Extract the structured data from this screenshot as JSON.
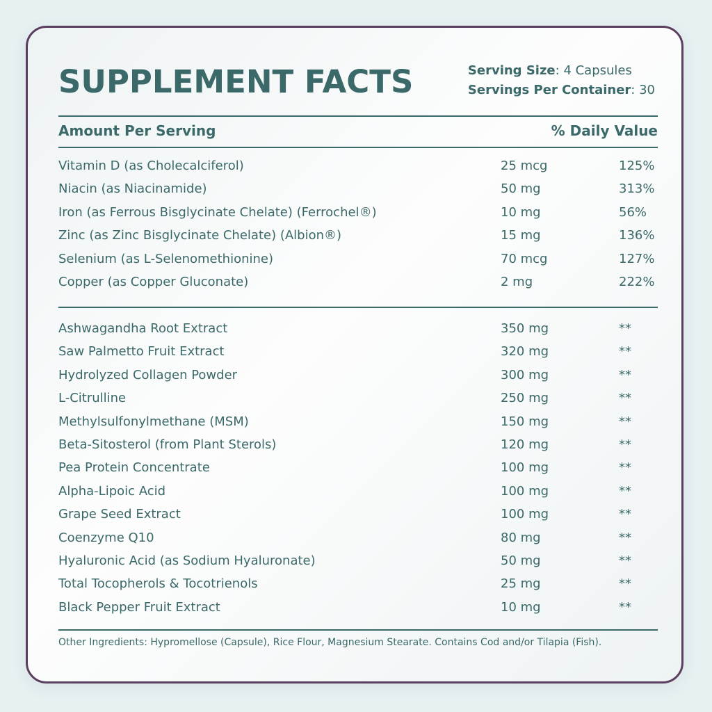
{
  "title": "SUPPLEMENT FACTS",
  "serving": {
    "size_label": "Serving Size",
    "size_value": ": 4 Capsules",
    "per_container_label": "Servings Per Container",
    "per_container_value": ": 30"
  },
  "header": {
    "amount_label": "Amount Per Serving",
    "daily_value_label": "% Daily Value"
  },
  "vitamins": [
    {
      "name": "Vitamin D (as Cholecalciferol)",
      "amount": "25 mcg",
      "dv": "125%"
    },
    {
      "name": "Niacin (as Niacinamide)",
      "amount": "50 mg",
      "dv": "313%"
    },
    {
      "name": "Iron (as Ferrous Bisglycinate Chelate) (Ferrochel®)",
      "amount": "10 mg",
      "dv": "56%"
    },
    {
      "name": "Zinc (as Zinc Bisglycinate Chelate) (Albion®)",
      "amount": "15 mg",
      "dv": "136%"
    },
    {
      "name": "Selenium (as L-Selenomethionine)",
      "amount": "70 mcg",
      "dv": "127%"
    },
    {
      "name": "Copper (as Copper Gluconate)",
      "amount": "2 mg",
      "dv": "222%"
    }
  ],
  "other_ingredients_list": [
    {
      "name": "Ashwagandha Root Extract",
      "amount": "350 mg",
      "dv": "**"
    },
    {
      "name": "Saw Palmetto Fruit Extract",
      "amount": "320 mg",
      "dv": "**"
    },
    {
      "name": "Hydrolyzed Collagen Powder",
      "amount": "300 mg",
      "dv": "**"
    },
    {
      "name": "L-Citrulline",
      "amount": "250 mg",
      "dv": "**"
    },
    {
      "name": "Methylsulfonylmethane (MSM)",
      "amount": "150 mg",
      "dv": "**"
    },
    {
      "name": "Beta-Sitosterol (from Plant Sterols)",
      "amount": "120 mg",
      "dv": "**"
    },
    {
      "name": "Pea Protein Concentrate",
      "amount": "100 mg",
      "dv": "**"
    },
    {
      "name": "Alpha-Lipoic Acid",
      "amount": "100 mg",
      "dv": "**"
    },
    {
      "name": "Grape Seed Extract",
      "amount": "100 mg",
      "dv": "**"
    },
    {
      "name": "Coenzyme Q10",
      "amount": "80 mg",
      "dv": "**"
    },
    {
      "name": "Hyaluronic Acid (as Sodium Hyaluronate)",
      "amount": "50 mg",
      "dv": "**"
    },
    {
      "name": "Total Tocopherols & Tocotrienols",
      "amount": "25 mg",
      "dv": "**"
    },
    {
      "name": "Black Pepper Fruit Extract",
      "amount": "10 mg",
      "dv": "**"
    }
  ],
  "footer": "Other Ingredients: Hypromellose (Capsule), Rice Flour, Magnesium Stearate. Contains Cod and/or Tilapia (Fish).",
  "colors": {
    "text": "#3b6868",
    "border": "#5a3e5d",
    "background": "#e6f1f2"
  }
}
